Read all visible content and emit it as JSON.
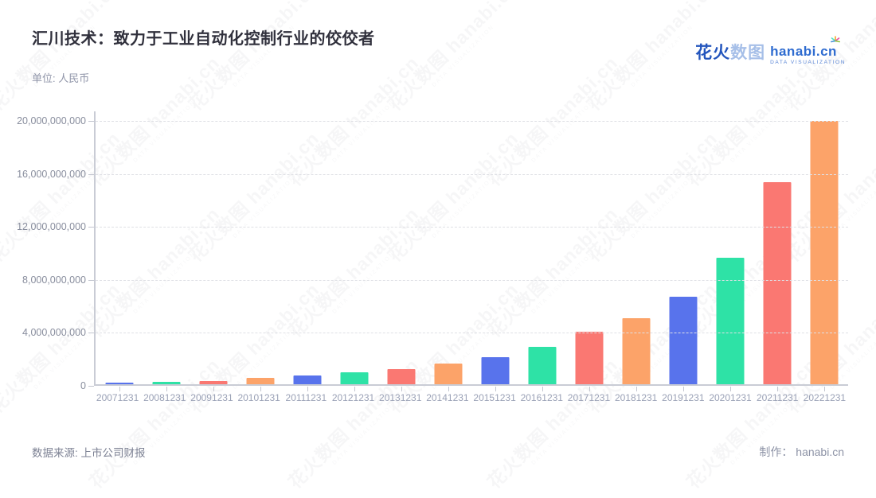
{
  "header": {
    "title": "汇川技术：致力于工业自动化控制行业的佼佼者",
    "unit_label": "单位: 人民币",
    "logo": {
      "brand_cn_primary": "花火",
      "brand_cn_secondary": "数图",
      "brand_en": "hanabi.cn",
      "tagline": "DATA VISUALIZATION"
    }
  },
  "footer": {
    "source": "数据来源: 上市公司财报",
    "credit": "制作： hanabi.cn"
  },
  "watermark": {
    "text": "花火数图 hanabi.cn",
    "tagline": "DATA VISUALIZATION"
  },
  "colors": {
    "bar_palette": [
      "#5873EC",
      "#2EE2A6",
      "#FA7872",
      "#FCA369"
    ],
    "axis_line": "#c9ccd5",
    "grid_line": "#dfe0e5",
    "tick_label": "#9aa1b6",
    "logo_primary": "#2355bd",
    "logo_secondary": "#a6bfe8",
    "logo_en": "#2f6cd0"
  },
  "chart_data": {
    "type": "bar",
    "title": "汇川技术：致力于工业自动化控制行业的佼佼者",
    "unit": "人民币",
    "xlabel": "",
    "ylabel": "",
    "grid": "horizontal-dashed",
    "legend": "none",
    "ylim": [
      0,
      20000000000
    ],
    "ytick_step": 4000000000,
    "ytick_labels_top_to_bottom": [
      "20,000,000,000",
      "16,000,000,000",
      "12,000,000,000",
      "8,000,000,000",
      "4,000,000,000",
      "0"
    ],
    "categories": [
      "20071231",
      "20081231",
      "20091231",
      "20101231",
      "20111231",
      "20121231",
      "20131231",
      "20141231",
      "20151231",
      "20161231",
      "20171231",
      "20181231",
      "20191231",
      "20201231",
      "20211231",
      "20221231"
    ],
    "values": [
      130000000,
      170000000,
      270000000,
      480000000,
      680000000,
      880000000,
      1170000000,
      1560000000,
      2060000000,
      2810000000,
      3980000000,
      5000000000,
      6600000000,
      9560000000,
      15260000000,
      19860000000
    ]
  }
}
